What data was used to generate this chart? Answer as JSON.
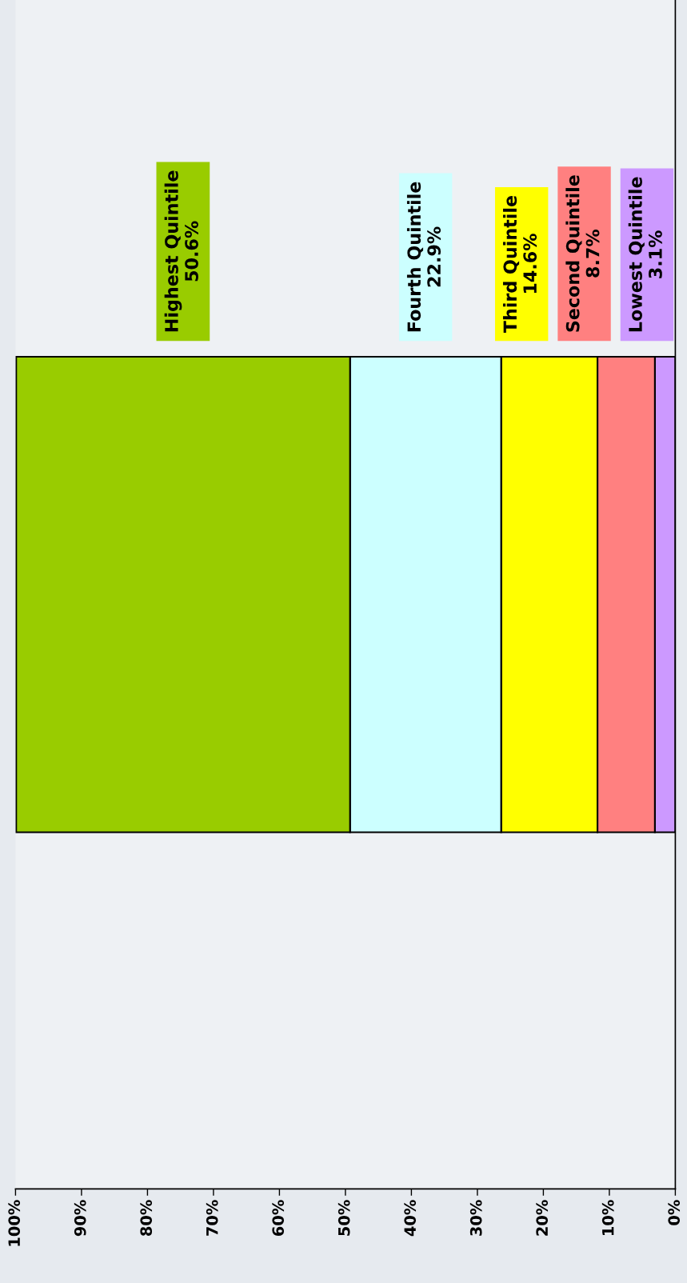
{
  "chart_data": {
    "type": "bar",
    "orientation": "horizontal",
    "stacked": true,
    "categories": [
      null
    ],
    "series": [
      {
        "name": "Lowest Quintile",
        "color": "#cc99ff",
        "values": [
          3.1
        ]
      },
      {
        "name": "Second Quintile",
        "color": "#ff8080",
        "values": [
          8.7
        ]
      },
      {
        "name": "Third Quintile",
        "color": "#ffff00",
        "values": [
          14.6
        ]
      },
      {
        "name": "Fourth Quintile",
        "color": "#ccffff",
        "values": [
          22.9
        ]
      },
      {
        "name": "Highest Quintile",
        "color": "#99cc00",
        "values": [
          50.6
        ]
      }
    ],
    "annotations": [
      "3.1%",
      "8.7%",
      "14.6%",
      "22.9%",
      "50.6%"
    ],
    "xlim": [
      100,
      0
    ],
    "xticks": [
      {
        "value": 100,
        "label": "100%"
      },
      {
        "value": 90,
        "label": "90%"
      },
      {
        "value": 80,
        "label": "80%"
      },
      {
        "value": 70,
        "label": "70%"
      },
      {
        "value": 60,
        "label": "60%"
      },
      {
        "value": 50,
        "label": "50%"
      },
      {
        "value": 40,
        "label": "40%"
      },
      {
        "value": 30,
        "label": "30%"
      },
      {
        "value": 20,
        "label": "20%"
      },
      {
        "value": 10,
        "label": "10%"
      },
      {
        "value": 0,
        "label": "0%"
      }
    ],
    "grid": false,
    "legend": false
  }
}
